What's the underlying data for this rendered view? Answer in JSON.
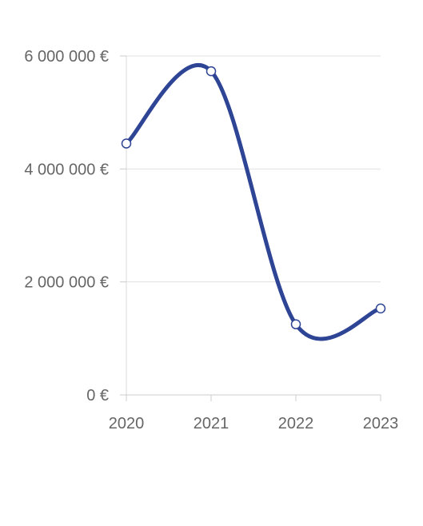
{
  "chart_data": {
    "type": "line",
    "title": "",
    "xlabel": "",
    "ylabel": "",
    "categories": [
      "2020",
      "2021",
      "2022",
      "2023"
    ],
    "series": [
      {
        "values": [
          4450000,
          5730000,
          1250000,
          1530000
        ]
      }
    ],
    "ylim": [
      0,
      6000000
    ],
    "y_ticks": [
      {
        "value": 0,
        "label": "0 €"
      },
      {
        "value": 2000000,
        "label": "2 000 000 €"
      },
      {
        "value": 4000000,
        "label": "4 000 000 €"
      },
      {
        "value": 6000000,
        "label": "6 000 000 €"
      }
    ],
    "grid": true,
    "line_color": "#2e4494",
    "smooth": true
  }
}
